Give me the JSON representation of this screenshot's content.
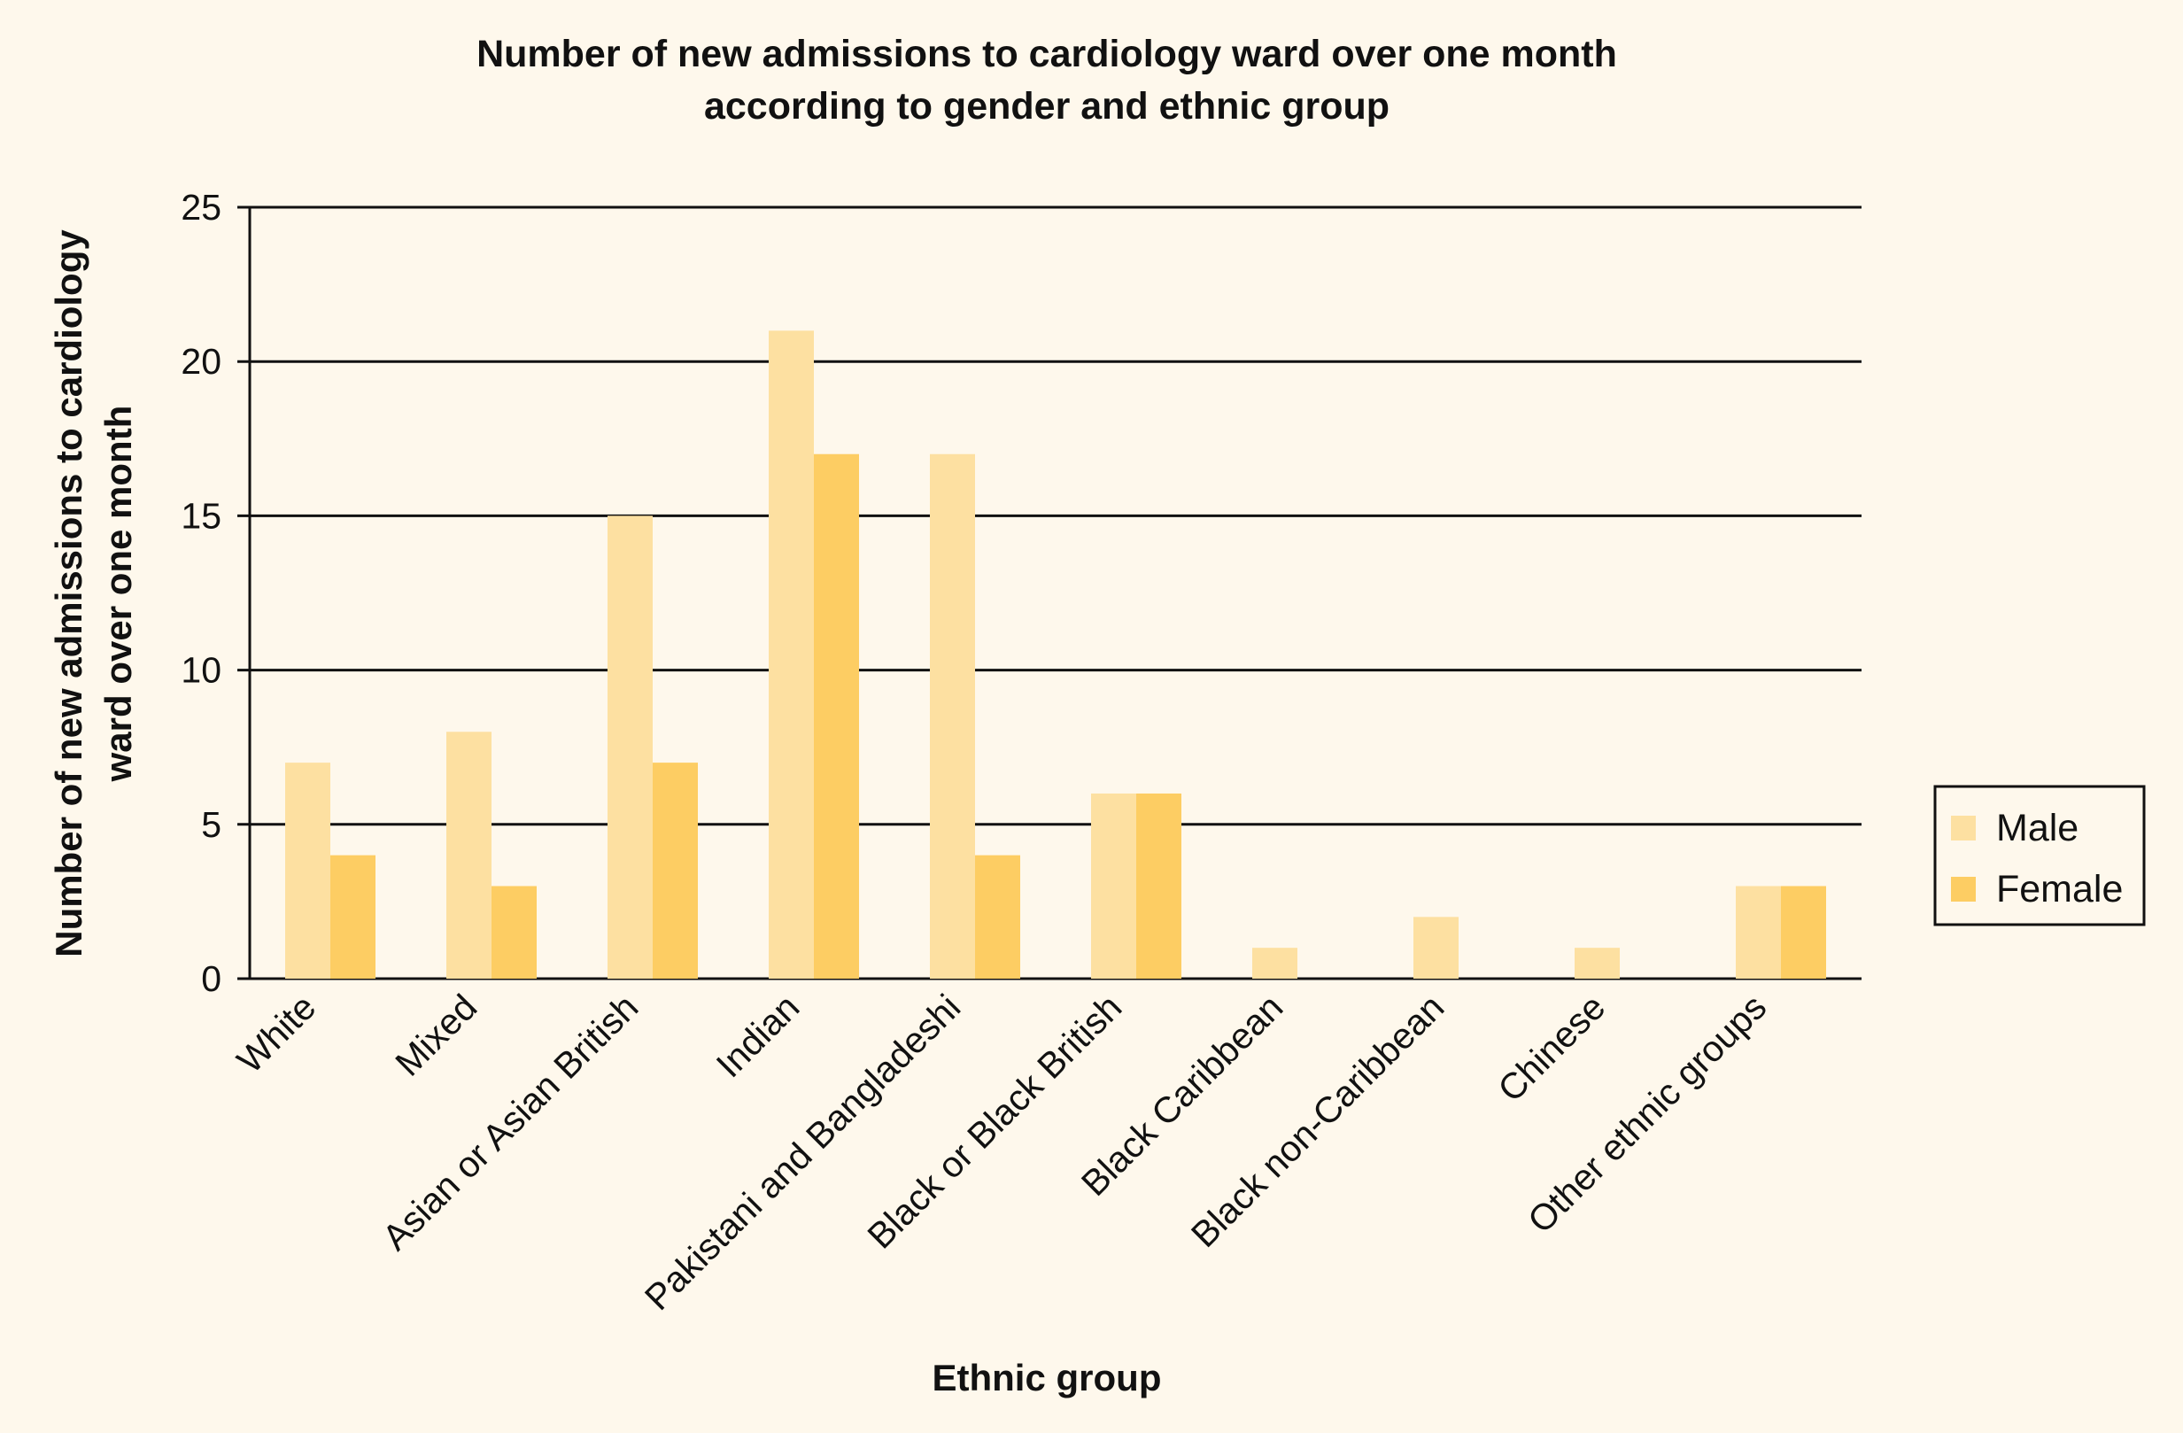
{
  "chart_data": {
    "type": "bar",
    "title": [
      "Number of new admissions to cardiology ward over one month",
      "according to gender and ethnic group"
    ],
    "xlabel": "Ethnic group",
    "ylabel": [
      "Number of new admissions to cardiology",
      "ward over one month"
    ],
    "ylim": [
      0,
      25
    ],
    "yticks": [
      0,
      5,
      10,
      15,
      20,
      25
    ],
    "grid": "horizontal",
    "legend_position": "right",
    "categories": [
      "White",
      "Mixed",
      "Asian or Asian British",
      "Indian",
      "Pakistani and Bangladeshi",
      "Black or Black British",
      "Black Caribbean",
      "Black non-Caribbean",
      "Chinese",
      "Other ethnic groups"
    ],
    "series": [
      {
        "name": "Male",
        "color": "#fde0a1",
        "values": [
          7,
          8,
          15,
          21,
          17,
          6,
          1,
          2,
          1,
          3
        ]
      },
      {
        "name": "Female",
        "color": "#fdcd63",
        "values": [
          4,
          3,
          7,
          17,
          4,
          6,
          0,
          0,
          0,
          3
        ]
      }
    ]
  }
}
